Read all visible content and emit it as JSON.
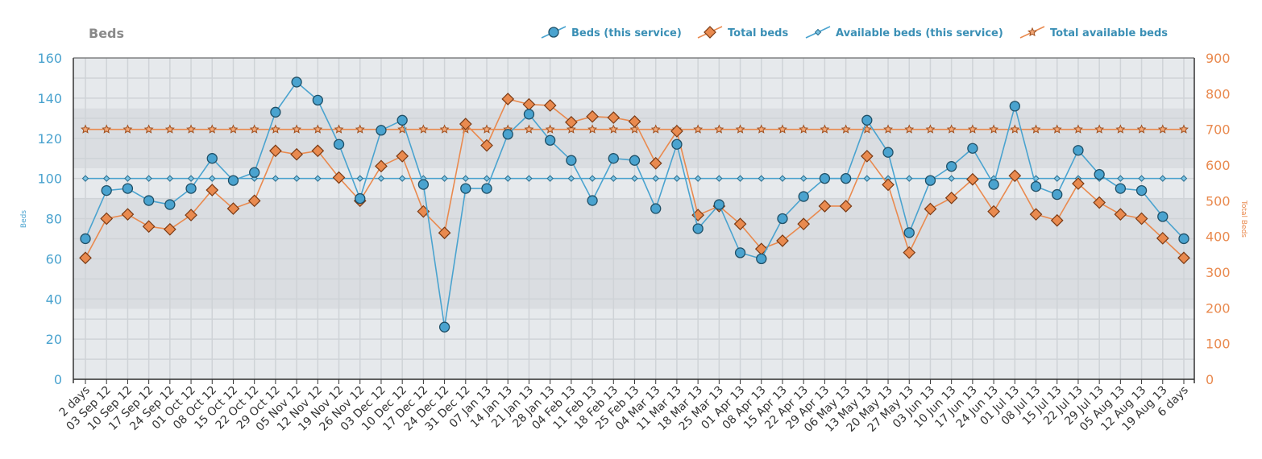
{
  "chart_data": {
    "type": "line",
    "title": "Beds",
    "ylabel": "Beds",
    "y2label": "Total Beds",
    "ylim": [
      0,
      160
    ],
    "y2lim": [
      0,
      900
    ],
    "yticks": [
      0,
      20,
      40,
      60,
      80,
      100,
      120,
      140,
      160
    ],
    "y2ticks": [
      0,
      100,
      200,
      300,
      400,
      500,
      600,
      700,
      800,
      900
    ],
    "grid": true,
    "legend_position": "top-right",
    "categories": [
      "2 days",
      "03 Sep 12",
      "10 Sep 12",
      "17 Sep 12",
      "24 Sep 12",
      "01 Oct 12",
      "08 Oct 12",
      "15 Oct 12",
      "22 Oct 12",
      "29 Oct 12",
      "05 Nov 12",
      "12 Nov 12",
      "19 Nov 12",
      "26 Nov 12",
      "03 Dec 12",
      "10 Dec 12",
      "17 Dec 12",
      "24 Dec 12",
      "31 Dec 12",
      "07 Jan 13",
      "14 Jan 13",
      "21 Jan 13",
      "28 Jan 13",
      "04 Feb 13",
      "11 Feb 13",
      "18 Feb 13",
      "25 Feb 13",
      "04 Mar 13",
      "11 Mar 13",
      "18 Mar 13",
      "25 Mar 13",
      "01 Apr 13",
      "08 Apr 13",
      "15 Apr 13",
      "22 Apr 13",
      "29 Apr 13",
      "06 May 13",
      "13 May 13",
      "20 May 13",
      "27 May 13",
      "03 Jun 13",
      "10 Jun 13",
      "17 Jun 13",
      "24 Jun 13",
      "01 Jul 13",
      "08 Jul 13",
      "15 Jul 13",
      "22 Jul 13",
      "29 Jul 13",
      "05 Aug 13",
      "12 Aug 13",
      "19 Aug 13",
      "6 days"
    ],
    "series": [
      {
        "name": "Beds (this service)",
        "axis": "left",
        "marker": "circle",
        "color": "#4aa3cf",
        "values": [
          70,
          94,
          95,
          89,
          87,
          95,
          110,
          99,
          103,
          133,
          148,
          139,
          117,
          90,
          124,
          129,
          97,
          26,
          95,
          95,
          122,
          132,
          119,
          109,
          89,
          110,
          109,
          85,
          117,
          75,
          87,
          63,
          60,
          80,
          91,
          100,
          100,
          129,
          113,
          73,
          99,
          106,
          115,
          97,
          136,
          96,
          92,
          114,
          102,
          95,
          94,
          81,
          70
        ]
      },
      {
        "name": "Total beds",
        "axis": "right",
        "marker": "diamond",
        "color": "#e98a4f",
        "values": [
          340,
          450,
          462,
          428,
          420,
          460,
          530,
          478,
          500,
          640,
          630,
          640,
          565,
          500,
          597,
          625,
          470,
          410,
          715,
          655,
          785,
          770,
          767,
          720,
          736,
          733,
          722,
          605,
          695,
          460,
          485,
          435,
          365,
          388,
          435,
          485,
          485,
          625,
          545,
          355,
          477,
          508,
          560,
          470,
          570,
          462,
          445,
          548,
          495,
          462,
          450,
          395,
          340
        ]
      },
      {
        "name": "Available beds (this service)",
        "axis": "left",
        "marker": "small-diamond",
        "color": "#4aa3cf",
        "values": [
          100,
          100,
          100,
          100,
          100,
          100,
          100,
          100,
          100,
          100,
          100,
          100,
          100,
          100,
          100,
          100,
          100,
          100,
          100,
          100,
          100,
          100,
          100,
          100,
          100,
          100,
          100,
          100,
          100,
          100,
          100,
          100,
          100,
          100,
          100,
          100,
          100,
          100,
          100,
          100,
          100,
          100,
          100,
          100,
          100,
          100,
          100,
          100,
          100,
          100,
          100,
          100,
          100
        ]
      },
      {
        "name": "Total available beds",
        "axis": "right",
        "marker": "star",
        "color": "#e98a4f",
        "values": [
          700,
          700,
          700,
          700,
          700,
          700,
          700,
          700,
          700,
          700,
          700,
          700,
          700,
          700,
          700,
          700,
          700,
          700,
          700,
          700,
          700,
          700,
          700,
          700,
          700,
          700,
          700,
          700,
          700,
          700,
          700,
          700,
          700,
          700,
          700,
          700,
          700,
          700,
          700,
          700,
          700,
          700,
          700,
          700,
          700,
          700,
          700,
          700,
          700,
          700,
          700,
          700,
          700
        ]
      }
    ]
  }
}
